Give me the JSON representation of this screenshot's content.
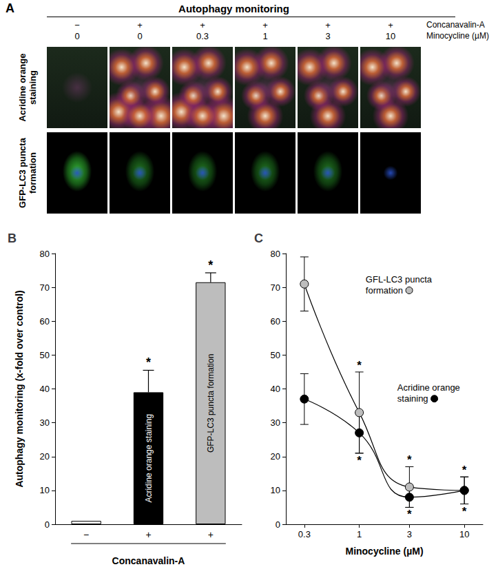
{
  "panel_a": {
    "label": "A",
    "title": "Autophagy monitoring",
    "rows": [
      "Acridine orange staining",
      "GFP-LC3 puncta formation"
    ],
    "treatments": [
      {
        "name": "Concanavalin-A",
        "levels": [
          "−",
          "+",
          "+",
          "+",
          "+",
          "+"
        ]
      },
      {
        "name": "Minocycline (µM)",
        "levels": [
          0,
          0,
          0.3,
          1,
          3,
          10
        ]
      }
    ]
  },
  "chart_data": [
    {
      "type": "bar",
      "title": "B",
      "categories": [
        "−",
        "+",
        "+"
      ],
      "xlabel": "Concanavalin-A",
      "ylabel": "Autophagy monitoring (x-fold over control)",
      "values": [
        1,
        39,
        71.5
      ],
      "errors": [
        null,
        6.5,
        2.8
      ],
      "significance": [
        null,
        "*",
        "*"
      ],
      "bar_labels": [
        null,
        "Acridine orange staining",
        "GFP-LC3 puncta formation"
      ],
      "colors": [
        "#ffffff",
        "#000000",
        "#bdbdbd"
      ],
      "ylim": [
        0,
        80
      ],
      "yticks": [
        0,
        10,
        20,
        30,
        40,
        50,
        60,
        70,
        80
      ],
      "grid": false
    },
    {
      "type": "line",
      "title": "C",
      "xlabel": "Minocycline (µM)",
      "x": [
        0.3,
        1,
        3,
        10
      ],
      "log": "x",
      "xlim": [
        0.2,
        15
      ],
      "xticks": [
        0.3,
        1,
        3,
        10
      ],
      "ylim": [
        0,
        80
      ],
      "yticks": [
        0,
        10,
        20,
        30,
        40,
        50,
        60,
        70,
        80
      ],
      "grid": false,
      "line_style": "smooth",
      "marker": "circle",
      "series": [
        {
          "name": "GFL-LC3 puncta formation",
          "color": "#bdbdbd",
          "values": [
            71,
            33,
            11,
            10
          ],
          "errors": [
            8,
            12,
            6,
            4
          ],
          "significance": [
            null,
            "*",
            "*",
            "*"
          ]
        },
        {
          "name": "Acridine orange staining",
          "color": "#000000",
          "values": [
            37,
            27,
            8,
            10
          ],
          "errors": [
            7.5,
            6,
            3,
            4
          ],
          "significance": [
            null,
            "*",
            "*",
            "*"
          ]
        }
      ]
    }
  ]
}
